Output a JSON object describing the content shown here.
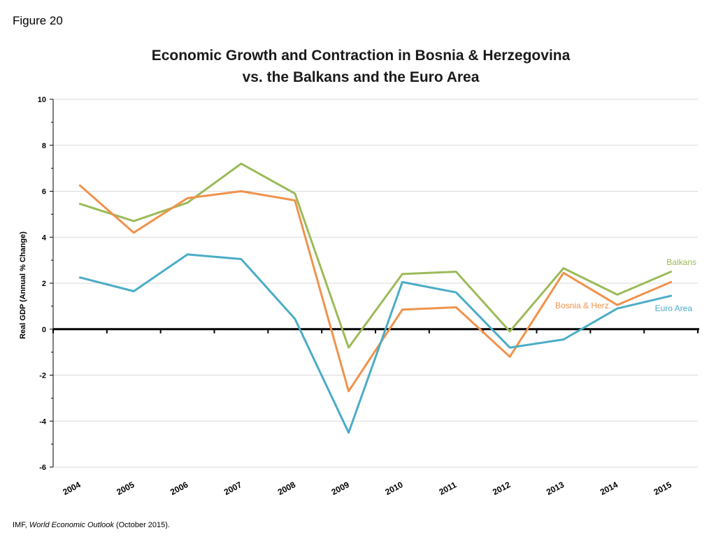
{
  "figure_label": "Figure 20",
  "source": {
    "prefix": "IMF, ",
    "italic": "World Economic Outlook",
    "suffix": " (October 2015)."
  },
  "chart_data": {
    "type": "line",
    "title_line1": "Economic Growth and Contraction in Bosnia & Herzegovina",
    "title_line2": "vs. the Balkans and the Euro Area",
    "ylabel": "Real GDP (Annual %  Change)",
    "xlabel": "",
    "ylim": [
      -6,
      10
    ],
    "yticks": [
      "10",
      "8",
      "6",
      "4",
      "2",
      "0",
      "-2",
      "-4",
      "-6"
    ],
    "x": [
      "2004",
      "2005",
      "2006",
      "2007",
      "2008",
      "2009",
      "2010",
      "2011",
      "2012",
      "2013",
      "2014",
      "2015"
    ],
    "grid": true,
    "series": [
      {
        "name": "Balkans",
        "color": "#9bbb59",
        "values": [
          5.45,
          4.7,
          5.5,
          7.2,
          5.9,
          -0.8,
          2.4,
          2.5,
          -0.1,
          2.65,
          1.5,
          2.5
        ]
      },
      {
        "name": "Bosnia & Herz.",
        "color": "#f0924c",
        "values": [
          6.25,
          4.2,
          5.7,
          6.0,
          5.6,
          -2.7,
          0.85,
          0.95,
          -1.2,
          2.45,
          1.05,
          2.05
        ]
      },
      {
        "name": "Euro  Area",
        "color": "#4bacc6",
        "values": [
          2.25,
          1.65,
          3.25,
          3.05,
          0.45,
          -4.5,
          2.05,
          1.6,
          -0.8,
          -0.45,
          0.9,
          1.45
        ]
      }
    ]
  }
}
